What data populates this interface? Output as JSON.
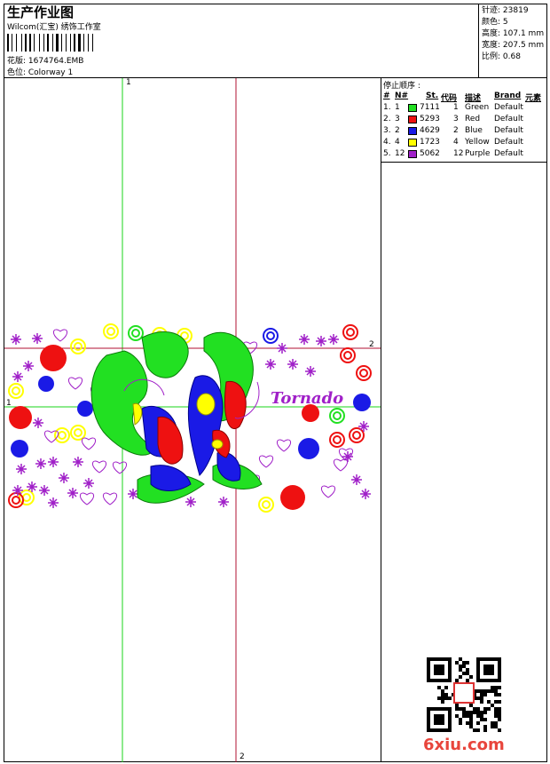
{
  "header": {
    "title": "生产作业图",
    "subtitle": "Wilcom(汇宝) 绣饰工作室",
    "design_label": "花版: 1674764.EMB",
    "colorway_label": "色位: Colorway 1"
  },
  "stats": [
    {
      "label": "针迹:",
      "value": "23819"
    },
    {
      "label": "颜色:",
      "value": "5"
    },
    {
      "label": "高度:",
      "value": "107.1 mm"
    },
    {
      "label": "宽度:",
      "value": "207.5 mm"
    },
    {
      "label": "比例:",
      "value": "0.68"
    }
  ],
  "stop_sequence": {
    "title": "停止顺序 :",
    "headers": [
      "#",
      "N#",
      "St.",
      "代码",
      "描述",
      "Brand",
      "元素"
    ],
    "rows": [
      {
        "num": "1.",
        "n": "1",
        "st": "7111",
        "code": "1",
        "desc": "Green",
        "brand": "Default",
        "color": "#22e022"
      },
      {
        "num": "2.",
        "n": "3",
        "st": "5293",
        "code": "3",
        "desc": "Red",
        "brand": "Default",
        "color": "#ee1111"
      },
      {
        "num": "3.",
        "n": "2",
        "st": "4629",
        "code": "2",
        "desc": "Blue",
        "brand": "Default",
        "color": "#1a1ae6"
      },
      {
        "num": "4.",
        "n": "4",
        "st": "1723",
        "code": "4",
        "desc": "Yellow",
        "brand": "Default",
        "color": "#ffff00"
      },
      {
        "num": "5.",
        "n": "12",
        "st": "5062",
        "code": "12",
        "desc": "Purple",
        "brand": "Default",
        "color": "#a020c8"
      }
    ]
  },
  "axes": {
    "v1_top": "1",
    "h1_left": "1",
    "v2_bottom": "2",
    "h2_right": "2"
  },
  "design_text": "Tornado",
  "watermark": "6xiu.com"
}
